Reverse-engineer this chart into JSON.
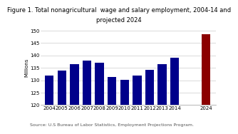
{
  "title_line1": "Figure 1. Total nonagricultural  wage and salary employment, 2004-14 and",
  "title_line2": "projected 2024",
  "ylabel": "Millions",
  "source": "Source: U.S Bureau of Labor Statistics, Employment Projections Program.",
  "years": [
    "2004",
    "2005",
    "2006",
    "2007",
    "2008",
    "2009",
    "2010",
    "2011",
    "2012",
    "2013",
    "2014",
    "2024"
  ],
  "values": [
    131.8,
    134.0,
    136.5,
    137.9,
    137.2,
    131.2,
    130.3,
    131.8,
    134.2,
    136.4,
    139.0,
    148.5
  ],
  "bar_colors": [
    "#00008B",
    "#00008B",
    "#00008B",
    "#00008B",
    "#00008B",
    "#00008B",
    "#00008B",
    "#00008B",
    "#00008B",
    "#00008B",
    "#00008B",
    "#8B0000"
  ],
  "ylim": [
    120,
    150
  ],
  "yticks": [
    120,
    125,
    130,
    135,
    140,
    145,
    150
  ],
  "title_fontsize": 6.0,
  "label_fontsize": 5.0,
  "ylabel_fontsize": 5.0,
  "source_fontsize": 4.5,
  "background_color": "#ffffff"
}
